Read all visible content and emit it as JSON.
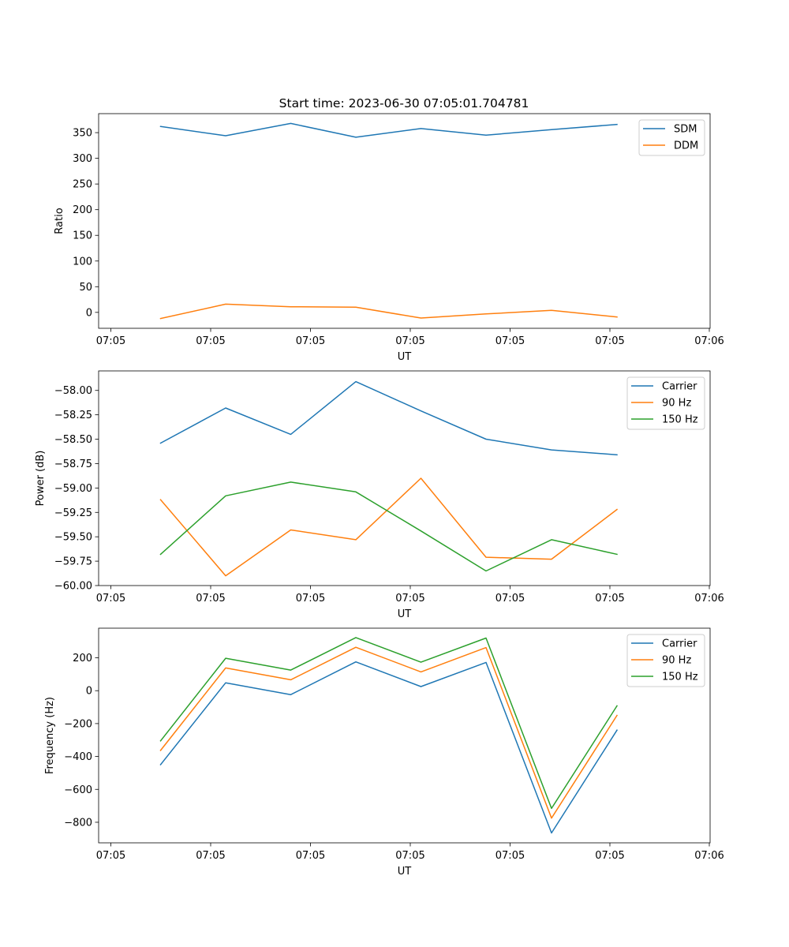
{
  "figure": {
    "title": "Start time: 2023-06-30 07:05:01.704781"
  },
  "chart_data": [
    {
      "type": "line",
      "title": "Start time: 2023-06-30 07:05:01.704781",
      "xlabel": "UT",
      "ylabel": "Ratio",
      "xtick_labels": [
        "07:05",
        "07:05",
        "07:05",
        "07:05",
        "07:05",
        "07:05",
        "07:06"
      ],
      "yticks": [
        0,
        50,
        100,
        150,
        200,
        250,
        300,
        350
      ],
      "ylim": [
        -31,
        387
      ],
      "legend_position": "top-right",
      "series": [
        {
          "name": "SDM",
          "color": "#1f77b4",
          "values": [
            362,
            344,
            368,
            341,
            358,
            345,
            356,
            366
          ]
        },
        {
          "name": "DDM",
          "color": "#ff7f0e",
          "values": [
            -12,
            16,
            11,
            10,
            -11,
            -3,
            4,
            -9
          ]
        }
      ]
    },
    {
      "type": "line",
      "title": "",
      "xlabel": "UT",
      "ylabel": "Power (dB)",
      "xtick_labels": [
        "07:05",
        "07:05",
        "07:05",
        "07:05",
        "07:05",
        "07:05",
        "07:06"
      ],
      "yticks": [
        -60.0,
        -59.75,
        -59.5,
        -59.25,
        -59.0,
        -58.75,
        -58.5,
        -58.25,
        -58.0
      ],
      "ytick_labels": [
        "−60.00",
        "−59.75",
        "−59.50",
        "−59.25",
        "−59.00",
        "−58.75",
        "−58.50",
        "−58.25",
        "−58.00"
      ],
      "ylim": [
        -60.0,
        -57.8
      ],
      "legend_position": "top-right",
      "series": [
        {
          "name": "Carrier",
          "color": "#1f77b4",
          "values": [
            -58.54,
            -58.18,
            -58.45,
            -57.91,
            -58.21,
            -58.5,
            -58.61,
            -58.66
          ]
        },
        {
          "name": "90 Hz",
          "color": "#ff7f0e",
          "values": [
            -59.12,
            -59.9,
            -59.43,
            -59.53,
            -58.9,
            -59.71,
            -59.73,
            -59.22
          ]
        },
        {
          "name": "150 Hz",
          "color": "#2ca02c",
          "values": [
            -59.68,
            -59.08,
            -58.94,
            -59.04,
            -59.44,
            -59.85,
            -59.53,
            -59.68
          ]
        }
      ]
    },
    {
      "type": "line",
      "title": "",
      "xlabel": "UT",
      "ylabel": "Frequency (Hz)",
      "xtick_labels": [
        "07:05",
        "07:05",
        "07:05",
        "07:05",
        "07:05",
        "07:05",
        "07:06"
      ],
      "yticks": [
        -800,
        -600,
        -400,
        -200,
        0,
        200
      ],
      "ytick_labels": [
        "−800",
        "−600",
        "−400",
        "−200",
        "0",
        "200"
      ],
      "ylim": [
        -925,
        380
      ],
      "legend_position": "top-right",
      "series": [
        {
          "name": "Carrier",
          "color": "#1f77b4",
          "values": [
            -450,
            48,
            -24,
            175,
            25,
            172,
            -865,
            -240
          ]
        },
        {
          "name": "90 Hz",
          "color": "#ff7f0e",
          "values": [
            -363,
            138,
            66,
            264,
            114,
            262,
            -775,
            -150
          ]
        },
        {
          "name": "150 Hz",
          "color": "#2ca02c",
          "values": [
            -305,
            197,
            125,
            323,
            173,
            320,
            -716,
            -92
          ]
        }
      ]
    }
  ]
}
